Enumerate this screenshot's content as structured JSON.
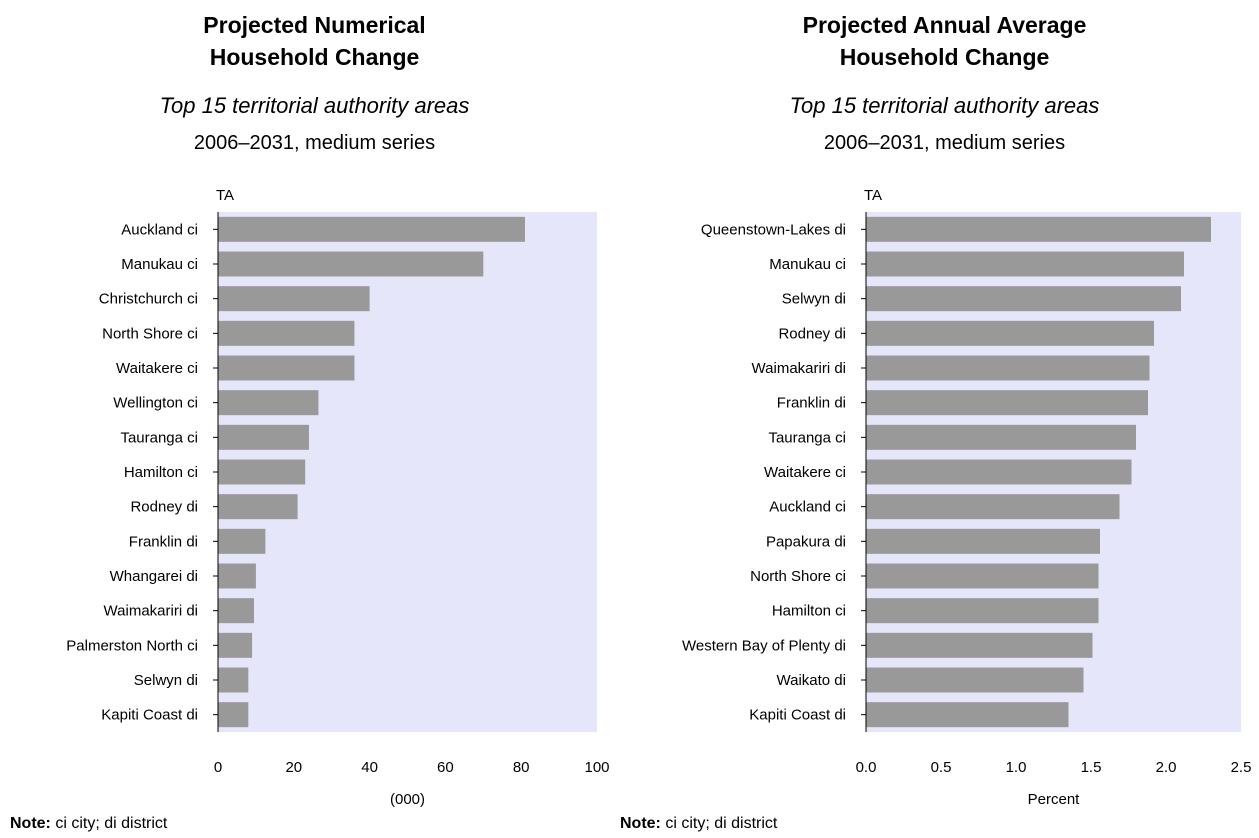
{
  "chart_data": [
    {
      "type": "bar",
      "orientation": "horizontal",
      "title_lines": [
        "Projected Numerical",
        "Household Change"
      ],
      "subtitle": "Top 15 territorial authority areas",
      "period": "2006–2031, medium series",
      "ylabel": "TA",
      "xlabel": "(000)",
      "xlim": [
        0,
        100
      ],
      "xticks": [
        "0",
        "20",
        "40",
        "60",
        "80",
        "100"
      ],
      "tick_values": [
        0,
        20,
        40,
        60,
        80,
        100
      ],
      "categories": [
        "Auckland ci",
        "Manukau ci",
        "Christchurch ci",
        "North Shore ci",
        "Waitakere ci",
        "Wellington ci",
        "Tauranga ci",
        "Hamilton ci",
        "Rodney di",
        "Franklin di",
        "Whangarei di",
        "Waimakariri di",
        "Palmerston North ci",
        "Selwyn di",
        "Kapiti Coast di"
      ],
      "values": [
        81,
        70,
        40,
        36,
        36,
        26.5,
        24,
        23,
        21,
        12.5,
        10,
        9.5,
        9,
        8,
        8
      ],
      "bar_color": "#999999",
      "plot_bg": "#e6e6fa",
      "grid": false,
      "note_label": "Note:",
      "note_text": " ci city; di district"
    },
    {
      "type": "bar",
      "orientation": "horizontal",
      "title_lines": [
        "Projected Annual Average",
        "Household Change"
      ],
      "subtitle": "Top 15 territorial authority areas",
      "period": "2006–2031, medium series",
      "ylabel": "TA",
      "xlabel": "Percent",
      "xlim": [
        0,
        2.5
      ],
      "xticks": [
        "0.0",
        "0.5",
        "1.0",
        "1.5",
        "2.0",
        "2.5"
      ],
      "tick_values": [
        0,
        0.5,
        1,
        1.5,
        2,
        2.5
      ],
      "categories": [
        "Queenstown-Lakes di",
        "Manukau ci",
        "Selwyn di",
        "Rodney di",
        "Waimakariri di",
        "Franklin di",
        "Tauranga ci",
        "Waitakere ci",
        "Auckland ci",
        "Papakura di",
        "North Shore ci",
        "Hamilton ci",
        "Western Bay of Plenty di",
        "Waikato di",
        "Kapiti Coast di"
      ],
      "values": [
        2.3,
        2.12,
        2.1,
        1.92,
        1.89,
        1.88,
        1.8,
        1.77,
        1.69,
        1.56,
        1.55,
        1.55,
        1.51,
        1.45,
        1.35
      ],
      "bar_color": "#999999",
      "plot_bg": "#e6e6fa",
      "grid": false,
      "note_label": "Note:",
      "note_text": " ci city; di district"
    }
  ]
}
